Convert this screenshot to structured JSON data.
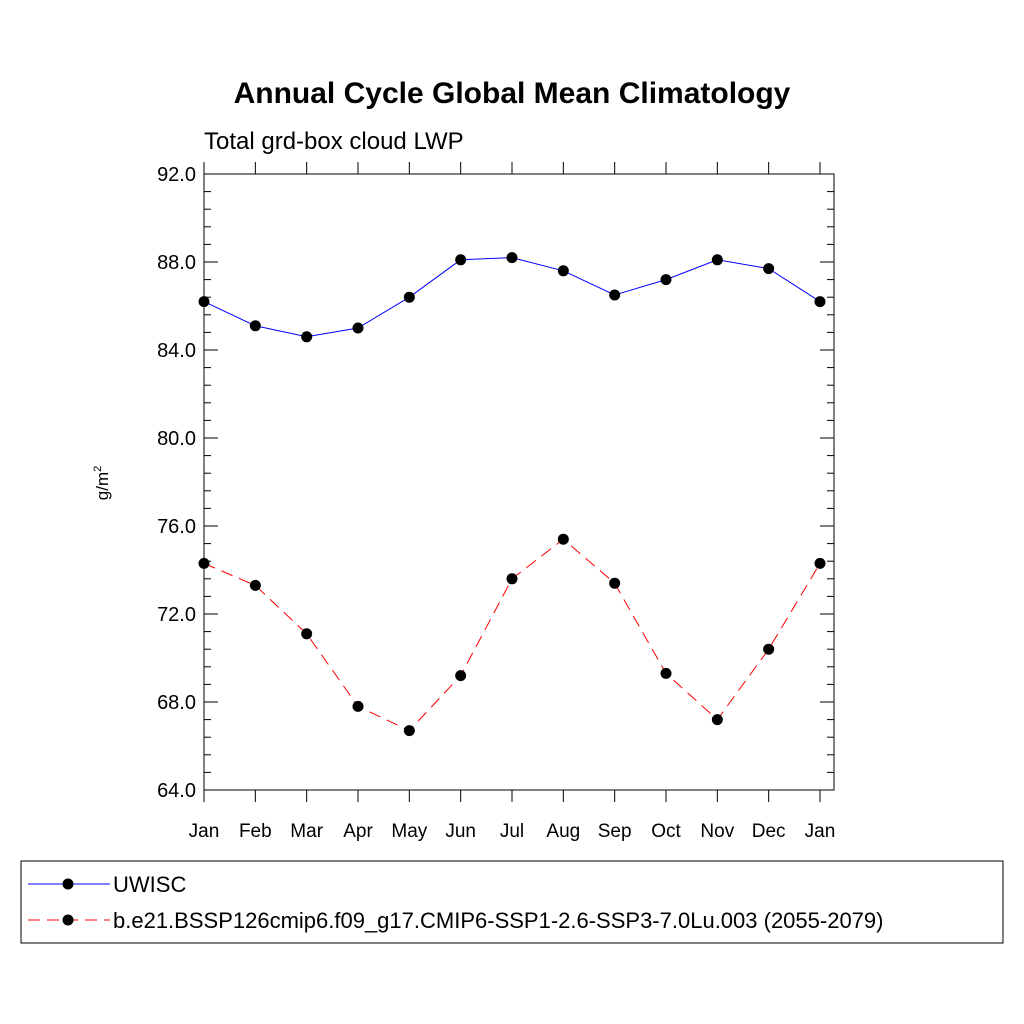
{
  "chart_data": {
    "type": "line",
    "title": "Annual Cycle Global Mean Climatology",
    "subtitle": "Total grd-box cloud LWP",
    "xlabel": "",
    "ylabel": "g/m",
    "ylabel_superscript": "2",
    "categories": [
      "Jan",
      "Feb",
      "Mar",
      "Apr",
      "May",
      "Jun",
      "Jul",
      "Aug",
      "Sep",
      "Oct",
      "Nov",
      "Dec",
      "Jan"
    ],
    "ylim": [
      64.0,
      92.0
    ],
    "yticks": [
      "64.0",
      "68.0",
      "72.0",
      "76.0",
      "80.0",
      "84.0",
      "88.0",
      "92.0"
    ],
    "grid": false,
    "legend_placement": "bottom",
    "series": [
      {
        "name": "UWISC",
        "color": "#0000ff",
        "dash": "solid",
        "marker": "filled-circle",
        "values": [
          86.2,
          85.1,
          84.6,
          85.0,
          86.4,
          88.1,
          88.2,
          87.6,
          86.5,
          87.2,
          88.1,
          87.7,
          86.2
        ]
      },
      {
        "name": "b.e21.BSSP126cmip6.f09_g17.CMIP6-SSP1-2.6-SSP3-7.0Lu.003 (2055-2079)",
        "color": "#ff0000",
        "dash": "dashed",
        "marker": "filled-circle",
        "values": [
          74.3,
          73.3,
          71.1,
          67.8,
          66.7,
          69.2,
          73.6,
          75.4,
          73.4,
          69.3,
          67.2,
          70.4,
          74.3
        ]
      }
    ]
  }
}
